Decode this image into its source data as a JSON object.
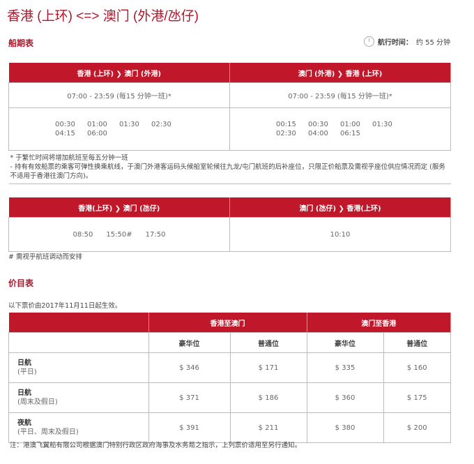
{
  "title": "香港 (上环) <=> 澳门 (外港/氹仔)",
  "schedule": {
    "heading": "船期表",
    "duration_label": "航行时间：",
    "duration_value": "约 55 分钟",
    "t1": {
      "col1": "香港 (上环) ❯ 澳门 (外港)",
      "col2": "澳门 (外港) ❯ 香港 (上环)",
      "freq1": "07:00 - 23:59 (每15 分钟一班)*",
      "freq2": "07:00 - 23:59 (每15 分钟一班)*",
      "night1": [
        "00:30",
        "01:00",
        "01:30",
        "02:30",
        "04:15",
        "06:00"
      ],
      "night2": [
        "00:15",
        "00:30",
        "01:00",
        "01:30",
        "02:30",
        "04:00",
        "06:15"
      ],
      "note1": "* 于繁忙时间将增加航班至每五分钟一班",
      "note2": "- 持有有效船票的乘客可弹性换乘航线，于澳门外港客运码头候船室轮候往九龙/屯门航班的后补座位，只限正价船票及需视乎座位供应情况而定 (服务不适用于香港往澳门方向)。"
    },
    "t2": {
      "col1": "香港(上环) ❯ 澳门 (氹仔)",
      "col2": "澳门 (氹仔) ❯ 香港(上环)",
      "times1": [
        "08:50",
        "15:50#",
        "17:50"
      ],
      "times2": [
        "10:10"
      ],
      "note": "# 需视乎航班调动而安排"
    }
  },
  "fares": {
    "heading": "价目表",
    "effective": "以下票价由2017年11月11日起生效。",
    "dir1": "香港至澳门",
    "dir2": "澳门至香港",
    "class1": "豪华位",
    "class2": "普通位",
    "rows": [
      {
        "name": "日航",
        "sub": "(平日)",
        "v": [
          "$ 346",
          "$ 171",
          "$ 335",
          "$ 160"
        ]
      },
      {
        "name": "日航",
        "sub": "(周末及假日)",
        "v": [
          "$ 371",
          "$ 186",
          "$ 360",
          "$ 175"
        ]
      },
      {
        "name": "夜航",
        "sub": "(平日、周末及假日)",
        "v": [
          "$ 391",
          "$ 211",
          "$ 380",
          "$ 200"
        ]
      }
    ],
    "note": "注：港澳飞翼船有限公司根据澳门特别行政区政府海事及水务局之指示，上列票价适用至另行通知。"
  },
  "colors": {
    "brand": "#c0172b"
  }
}
